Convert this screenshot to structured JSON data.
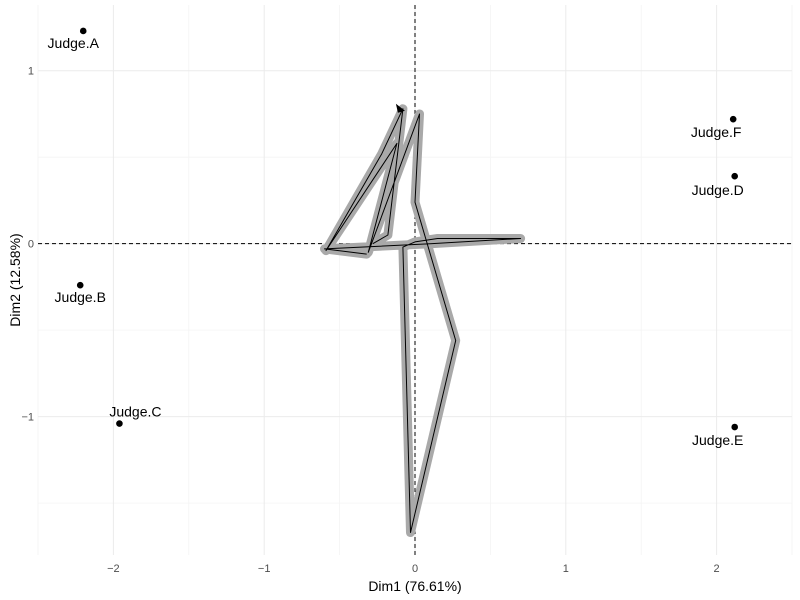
{
  "chart_data": {
    "type": "scatter",
    "xlabel": "Dim1 (76.61%)",
    "ylabel": "Dim2 (12.58%)",
    "xlim": [
      -2.5,
      2.5
    ],
    "ylim": [
      -1.8,
      1.38
    ],
    "x_ticks": [
      {
        "value": -2,
        "label": "−2"
      },
      {
        "value": -1,
        "label": "−1"
      },
      {
        "value": 0,
        "label": "0"
      },
      {
        "value": 1,
        "label": "1"
      },
      {
        "value": 2,
        "label": "2"
      }
    ],
    "y_ticks": [
      {
        "value": -1,
        "label": "−1"
      },
      {
        "value": 0,
        "label": "0"
      },
      {
        "value": 1,
        "label": "1"
      }
    ],
    "grid": true,
    "reference_lines": {
      "x": 0,
      "y": 0,
      "style": "dashed"
    },
    "points": [
      {
        "name": "Judge.A",
        "x": -2.2,
        "y": 1.23
      },
      {
        "name": "Judge.B",
        "x": -2.22,
        "y": -0.24
      },
      {
        "name": "Judge.C",
        "x": -1.96,
        "y": -1.04
      },
      {
        "name": "Judge.D",
        "x": 2.12,
        "y": 0.39
      },
      {
        "name": "Judge.E",
        "x": 2.12,
        "y": -1.06
      },
      {
        "name": "Judge.F",
        "x": 2.11,
        "y": 0.72
      }
    ],
    "trajectory": {
      "points": [
        [
          -0.28,
          0.0
        ],
        [
          -0.18,
          0.05
        ],
        [
          -0.08,
          0.78
        ],
        [
          -0.22,
          0.52
        ],
        [
          -0.59,
          -0.04
        ],
        [
          -0.12,
          0.58
        ],
        [
          -0.31,
          -0.05
        ],
        [
          0.03,
          0.75
        ],
        [
          0.0,
          0.24
        ],
        [
          0.27,
          -0.56
        ],
        [
          -0.03,
          -1.67
        ],
        [
          -0.08,
          -0.02
        ],
        [
          0.0,
          0.01
        ],
        [
          0.15,
          0.03
        ],
        [
          0.52,
          0.03
        ],
        [
          0.7,
          0.03
        ],
        [
          0.1,
          0.0
        ],
        [
          -0.6,
          -0.03
        ],
        [
          -0.32,
          -0.06
        ]
      ],
      "halo_color": "#a9a9a9",
      "line_color": "#000000",
      "arrow_at_end": [
        -0.1,
        0.78
      ]
    }
  }
}
